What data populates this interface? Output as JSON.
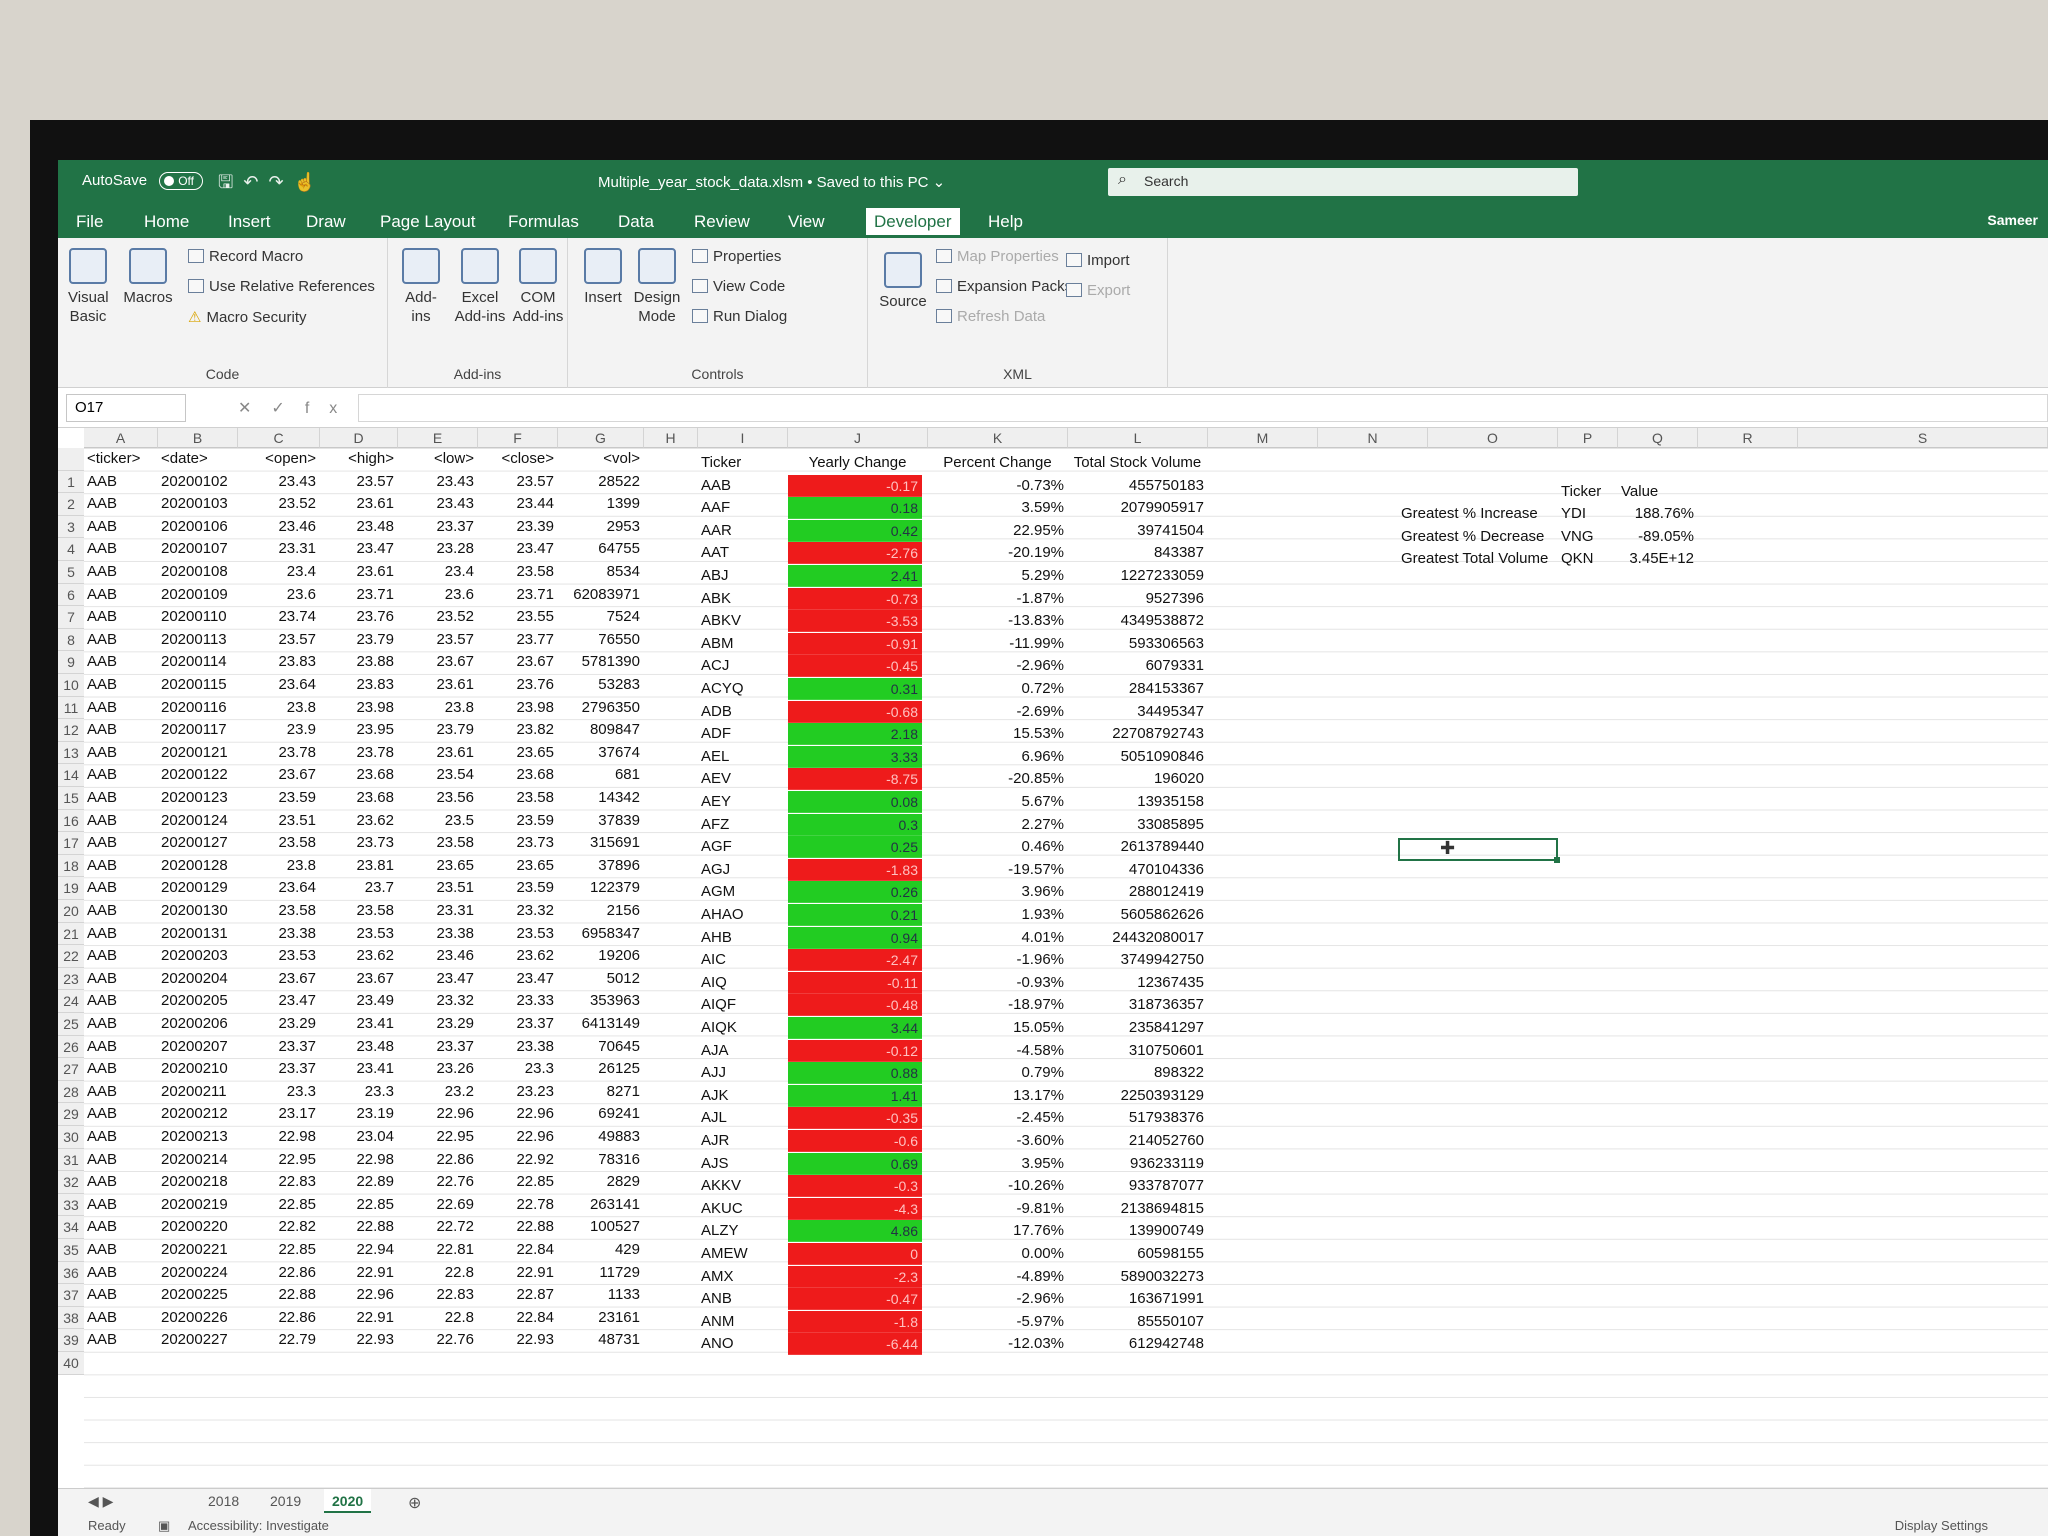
{
  "titlebar": {
    "autosave_label": "AutoSave",
    "autosave_state": "Off",
    "file_title": "Multiple_year_stock_data.xlsm • Saved to this PC ⌄",
    "search_placeholder": "Search"
  },
  "menu": {
    "tabs": [
      "File",
      "Home",
      "Insert",
      "Draw",
      "Page Layout",
      "Formulas",
      "Data",
      "Review",
      "View",
      "Developer",
      "Help"
    ],
    "active": "Developer",
    "user": "Sameer"
  },
  "ribbon": {
    "code": {
      "visual_basic": "Visual Basic",
      "macros": "Macros",
      "record_macro": "Record Macro",
      "use_relative": "Use Relative References",
      "macro_security": "Macro Security",
      "label": "Code"
    },
    "addins": {
      "add_ins": "Add-ins",
      "excel_add_ins": "Excel Add-ins",
      "com_add_ins": "COM Add-ins",
      "label": "Add-ins"
    },
    "controls": {
      "insert": "Insert",
      "design_mode": "Design Mode",
      "properties": "Properties",
      "view_code": "View Code",
      "run_dialog": "Run Dialog",
      "label": "Controls"
    },
    "xml": {
      "source": "Source",
      "map_properties": "Map Properties",
      "expansion_packs": "Expansion Packs",
      "refresh_data": "Refresh Data",
      "import": "Import",
      "export": "Export",
      "label": "XML"
    }
  },
  "formula_bar": {
    "name_box": "O17",
    "fx": "fx",
    "value": ""
  },
  "columns": [
    "A",
    "B",
    "C",
    "D",
    "E",
    "F",
    "G",
    "H",
    "I",
    "J",
    "K",
    "L",
    "M",
    "N",
    "O",
    "P",
    "Q",
    "R",
    "S"
  ],
  "headers_raw": [
    "<ticker>",
    "<date>",
    "<open>",
    "<high>",
    "<low>",
    "<close>",
    "<vol>"
  ],
  "rows": [
    [
      "AAB",
      "20200102",
      "23.43",
      "23.57",
      "23.43",
      "23.57",
      "28522"
    ],
    [
      "AAB",
      "20200103",
      "23.52",
      "23.61",
      "23.43",
      "23.44",
      "1399"
    ],
    [
      "AAB",
      "20200106",
      "23.46",
      "23.48",
      "23.37",
      "23.39",
      "2953"
    ],
    [
      "AAB",
      "20200107",
      "23.31",
      "23.47",
      "23.28",
      "23.47",
      "64755"
    ],
    [
      "AAB",
      "20200108",
      "23.4",
      "23.61",
      "23.4",
      "23.58",
      "8534"
    ],
    [
      "AAB",
      "20200109",
      "23.6",
      "23.71",
      "23.6",
      "23.71",
      "62083971"
    ],
    [
      "AAB",
      "20200110",
      "23.74",
      "23.76",
      "23.52",
      "23.55",
      "7524"
    ],
    [
      "AAB",
      "20200113",
      "23.57",
      "23.79",
      "23.57",
      "23.77",
      "76550"
    ],
    [
      "AAB",
      "20200114",
      "23.83",
      "23.88",
      "23.67",
      "23.67",
      "5781390"
    ],
    [
      "AAB",
      "20200115",
      "23.64",
      "23.83",
      "23.61",
      "23.76",
      "53283"
    ],
    [
      "AAB",
      "20200116",
      "23.8",
      "23.98",
      "23.8",
      "23.98",
      "2796350"
    ],
    [
      "AAB",
      "20200117",
      "23.9",
      "23.95",
      "23.79",
      "23.82",
      "809847"
    ],
    [
      "AAB",
      "20200121",
      "23.78",
      "23.78",
      "23.61",
      "23.65",
      "37674"
    ],
    [
      "AAB",
      "20200122",
      "23.67",
      "23.68",
      "23.54",
      "23.68",
      "681"
    ],
    [
      "AAB",
      "20200123",
      "23.59",
      "23.68",
      "23.56",
      "23.58",
      "14342"
    ],
    [
      "AAB",
      "20200124",
      "23.51",
      "23.62",
      "23.5",
      "23.59",
      "37839"
    ],
    [
      "AAB",
      "20200127",
      "23.58",
      "23.73",
      "23.58",
      "23.73",
      "315691"
    ],
    [
      "AAB",
      "20200128",
      "23.8",
      "23.81",
      "23.65",
      "23.65",
      "37896"
    ],
    [
      "AAB",
      "20200129",
      "23.64",
      "23.7",
      "23.51",
      "23.59",
      "122379"
    ],
    [
      "AAB",
      "20200130",
      "23.58",
      "23.58",
      "23.31",
      "23.32",
      "2156"
    ],
    [
      "AAB",
      "20200131",
      "23.38",
      "23.53",
      "23.38",
      "23.53",
      "6958347"
    ],
    [
      "AAB",
      "20200203",
      "23.53",
      "23.62",
      "23.46",
      "23.62",
      "19206"
    ],
    [
      "AAB",
      "20200204",
      "23.67",
      "23.67",
      "23.47",
      "23.47",
      "5012"
    ],
    [
      "AAB",
      "20200205",
      "23.47",
      "23.49",
      "23.32",
      "23.33",
      "353963"
    ],
    [
      "AAB",
      "20200206",
      "23.29",
      "23.41",
      "23.29",
      "23.37",
      "6413149"
    ],
    [
      "AAB",
      "20200207",
      "23.37",
      "23.48",
      "23.37",
      "23.38",
      "70645"
    ],
    [
      "AAB",
      "20200210",
      "23.37",
      "23.41",
      "23.26",
      "23.3",
      "26125"
    ],
    [
      "AAB",
      "20200211",
      "23.3",
      "23.3",
      "23.2",
      "23.23",
      "8271"
    ],
    [
      "AAB",
      "20200212",
      "23.17",
      "23.19",
      "22.96",
      "22.96",
      "69241"
    ],
    [
      "AAB",
      "20200213",
      "22.98",
      "23.04",
      "22.95",
      "22.96",
      "49883"
    ],
    [
      "AAB",
      "20200214",
      "22.95",
      "22.98",
      "22.86",
      "22.92",
      "78316"
    ],
    [
      "AAB",
      "20200218",
      "22.83",
      "22.89",
      "22.76",
      "22.85",
      "2829"
    ],
    [
      "AAB",
      "20200219",
      "22.85",
      "22.85",
      "22.69",
      "22.78",
      "263141"
    ],
    [
      "AAB",
      "20200220",
      "22.82",
      "22.88",
      "22.72",
      "22.88",
      "100527"
    ],
    [
      "AAB",
      "20200221",
      "22.85",
      "22.94",
      "22.81",
      "22.84",
      "429"
    ],
    [
      "AAB",
      "20200224",
      "22.86",
      "22.91",
      "22.8",
      "22.91",
      "11729"
    ],
    [
      "AAB",
      "20200225",
      "22.88",
      "22.96",
      "22.83",
      "22.87",
      "1133"
    ],
    [
      "AAB",
      "20200226",
      "22.86",
      "22.91",
      "22.8",
      "22.84",
      "23161"
    ],
    [
      "AAB",
      "20200227",
      "22.79",
      "22.93",
      "22.76",
      "22.93",
      "48731"
    ]
  ],
  "summary_headers": [
    "Ticker",
    "Yearly Change",
    "Percent Change",
    "Total Stock Volume"
  ],
  "summary": [
    [
      "AAB",
      "-0.17",
      "-0.73%",
      "455750183"
    ],
    [
      "AAF",
      "0.18",
      "3.59%",
      "2079905917"
    ],
    [
      "AAR",
      "0.42",
      "22.95%",
      "39741504"
    ],
    [
      "AAT",
      "-2.76",
      "-20.19%",
      "843387"
    ],
    [
      "ABJ",
      "2.41",
      "5.29%",
      "1227233059"
    ],
    [
      "ABK",
      "-0.73",
      "-1.87%",
      "9527396"
    ],
    [
      "ABKV",
      "-3.53",
      "-13.83%",
      "4349538872"
    ],
    [
      "ABM",
      "-0.91",
      "-11.99%",
      "593306563"
    ],
    [
      "ACJ",
      "-0.45",
      "-2.96%",
      "6079331"
    ],
    [
      "ACYQ",
      "0.31",
      "0.72%",
      "284153367"
    ],
    [
      "ADB",
      "-0.68",
      "-2.69%",
      "34495347"
    ],
    [
      "ADF",
      "2.18",
      "15.53%",
      "22708792743"
    ],
    [
      "AEL",
      "3.33",
      "6.96%",
      "5051090846"
    ],
    [
      "AEV",
      "-8.75",
      "-20.85%",
      "196020"
    ],
    [
      "AEY",
      "0.08",
      "5.67%",
      "13935158"
    ],
    [
      "AFZ",
      "0.3",
      "2.27%",
      "33085895"
    ],
    [
      "AGF",
      "0.25",
      "0.46%",
      "2613789440"
    ],
    [
      "AGJ",
      "-1.83",
      "-19.57%",
      "470104336"
    ],
    [
      "AGM",
      "0.26",
      "3.96%",
      "288012419"
    ],
    [
      "AHAO",
      "0.21",
      "1.93%",
      "5605862626"
    ],
    [
      "AHB",
      "0.94",
      "4.01%",
      "24432080017"
    ],
    [
      "AIC",
      "-2.47",
      "-1.96%",
      "3749942750"
    ],
    [
      "AIQ",
      "-0.11",
      "-0.93%",
      "12367435"
    ],
    [
      "AIQF",
      "-0.48",
      "-18.97%",
      "318736357"
    ],
    [
      "AIQK",
      "3.44",
      "15.05%",
      "235841297"
    ],
    [
      "AJA",
      "-0.12",
      "-4.58%",
      "310750601"
    ],
    [
      "AJJ",
      "0.88",
      "0.79%",
      "898322"
    ],
    [
      "AJK",
      "1.41",
      "13.17%",
      "2250393129"
    ],
    [
      "AJL",
      "-0.35",
      "-2.45%",
      "517938376"
    ],
    [
      "AJR",
      "-0.6",
      "-3.60%",
      "214052760"
    ],
    [
      "AJS",
      "0.69",
      "3.95%",
      "936233119"
    ],
    [
      "AKKV",
      "-0.3",
      "-10.26%",
      "933787077"
    ],
    [
      "AKUC",
      "-4.3",
      "-9.81%",
      "2138694815"
    ],
    [
      "ALZY",
      "4.86",
      "17.76%",
      "139900749"
    ],
    [
      "AMEW",
      "0",
      "0.00%",
      "60598155"
    ],
    [
      "AMX",
      "-2.3",
      "-4.89%",
      "5890032273"
    ],
    [
      "ANB",
      "-0.47",
      "-2.96%",
      "163671991"
    ],
    [
      "ANM",
      "-1.8",
      "-5.97%",
      "85550107"
    ],
    [
      "ANO",
      "-6.44",
      "-12.03%",
      "612942748"
    ]
  ],
  "greatest": {
    "headers": [
      "Ticker",
      "Value"
    ],
    "rows": [
      [
        "Greatest % Increase",
        "YDI",
        "188.76%"
      ],
      [
        "Greatest % Decrease",
        "VNG",
        "-89.05%"
      ],
      [
        "Greatest Total Volume",
        "QKN",
        "3.45E+12"
      ]
    ]
  },
  "sheets": [
    "2018",
    "2019",
    "2020"
  ],
  "active_sheet": "2020",
  "status": {
    "ready": "Ready",
    "accessibility": "Accessibility: Investigate",
    "display_settings": "Display Settings"
  },
  "colors": {
    "excel_green": "#217346",
    "positive": "#22cc22",
    "negative": "#ee1b1b"
  }
}
